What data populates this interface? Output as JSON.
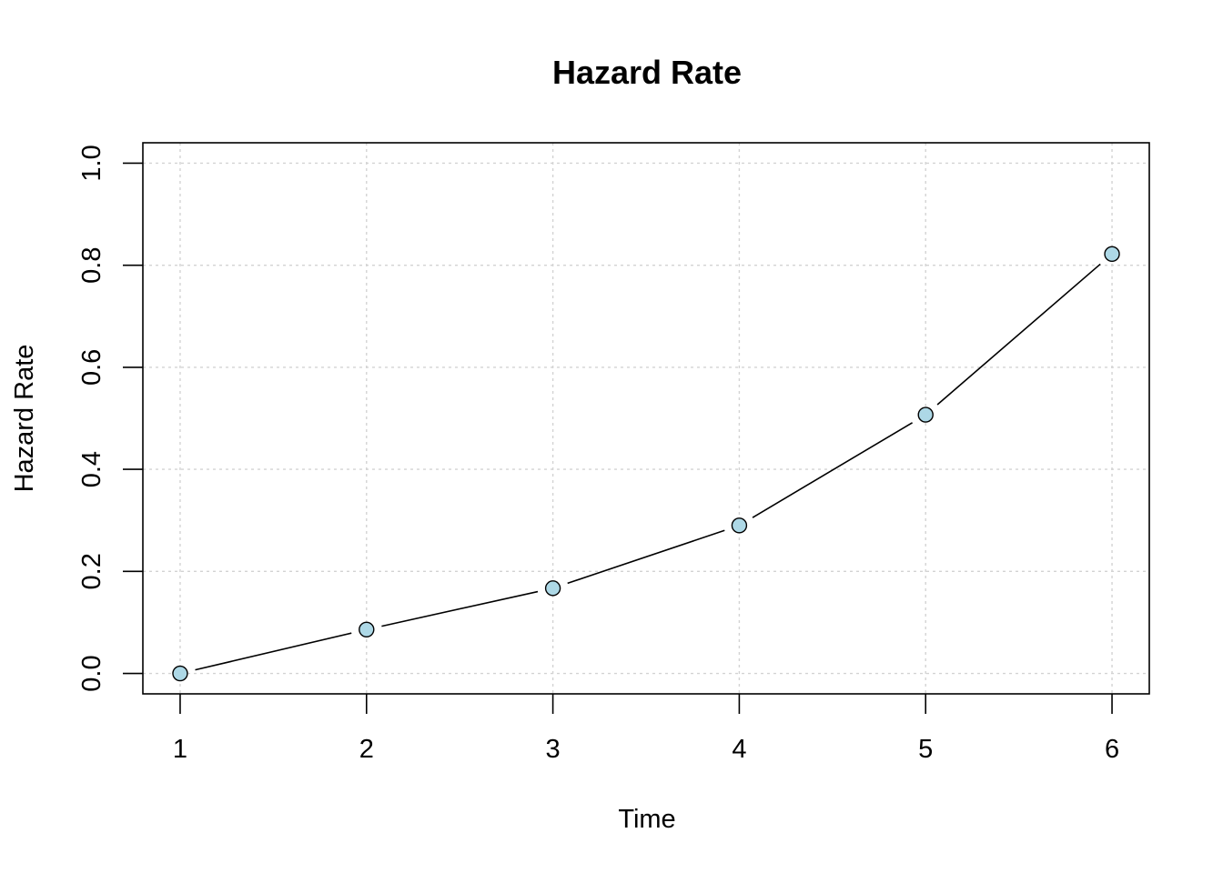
{
  "chart_data": {
    "type": "line",
    "title": "Hazard Rate",
    "xlabel": "Time",
    "ylabel": "Hazard Rate",
    "x": [
      1,
      2,
      3,
      4,
      5,
      6
    ],
    "y": [
      0.0,
      0.086,
      0.167,
      0.29,
      0.507,
      0.822
    ],
    "xticks": [
      "1",
      "2",
      "3",
      "4",
      "5",
      "6"
    ],
    "yticks": [
      "0.0",
      "0.2",
      "0.4",
      "0.6",
      "0.8",
      "1.0"
    ],
    "xlim": [
      0.8,
      6.2
    ],
    "ylim": [
      -0.04,
      1.04
    ],
    "grid": true,
    "line_color": "#000000",
    "point_fill": "#add8e6",
    "point_stroke": "#000000"
  }
}
